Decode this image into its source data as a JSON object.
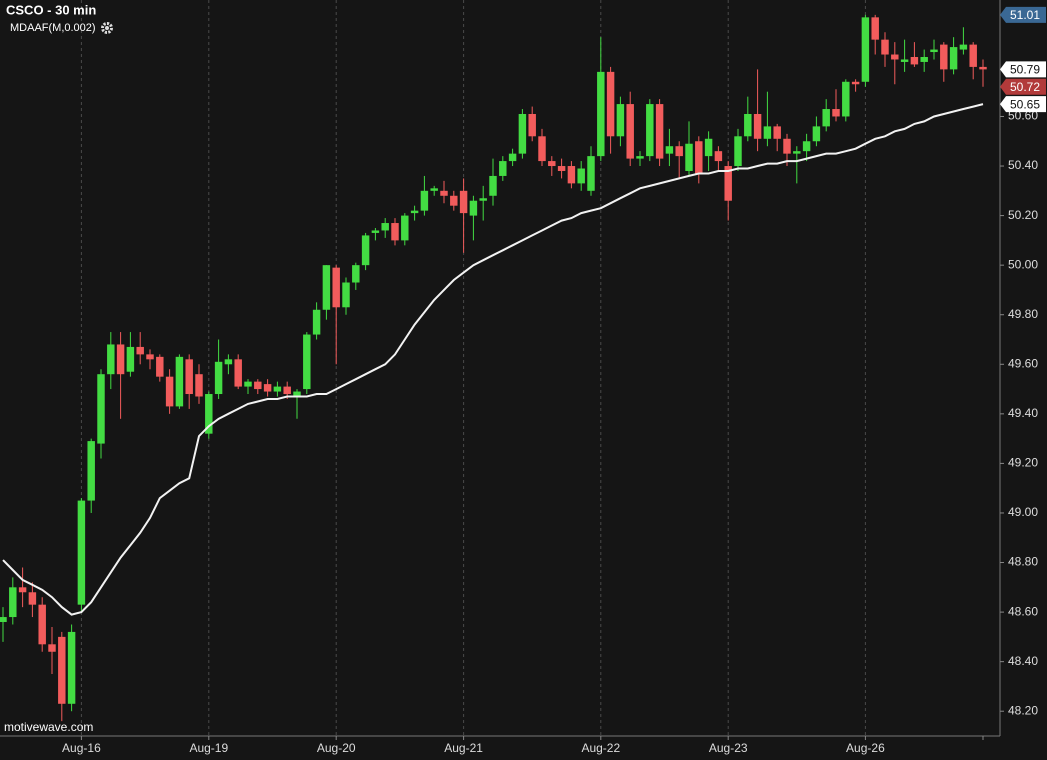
{
  "chart_data": {
    "type": "candlestick",
    "title": "CSCO - 30 min",
    "indicator": "MDAAF(M,0.002)",
    "watermark": "motivewave.com",
    "up_color": "#43dc43",
    "down_color": "#f25c5c",
    "background": "#151515",
    "xgrid": true,
    "ylim": [
      48.1,
      51.07
    ],
    "yticks": [
      {
        "value": 48.2,
        "label": "48.20"
      },
      {
        "value": 48.4,
        "label": "48.40"
      },
      {
        "value": 48.6,
        "label": "48.60"
      },
      {
        "value": 48.8,
        "label": "48.80"
      },
      {
        "value": 49.0,
        "label": "49.00"
      },
      {
        "value": 49.2,
        "label": "49.20"
      },
      {
        "value": 49.4,
        "label": "49.40"
      },
      {
        "value": 49.6,
        "label": "49.60"
      },
      {
        "value": 49.8,
        "label": "49.80"
      },
      {
        "value": 50.0,
        "label": "50.00"
      },
      {
        "value": 50.2,
        "label": "50.20"
      },
      {
        "value": 50.4,
        "label": "50.40"
      },
      {
        "value": 50.6,
        "label": "50.60"
      }
    ],
    "categories": [
      null,
      null,
      null,
      null,
      null,
      null,
      null,
      null,
      "Aug-16",
      null,
      null,
      null,
      null,
      null,
      null,
      null,
      null,
      null,
      null,
      null,
      null,
      "Aug-19",
      null,
      null,
      null,
      null,
      null,
      null,
      null,
      null,
      null,
      null,
      null,
      null,
      "Aug-20",
      null,
      null,
      null,
      null,
      null,
      null,
      null,
      null,
      null,
      null,
      null,
      null,
      "Aug-21",
      null,
      null,
      null,
      null,
      null,
      null,
      null,
      null,
      null,
      null,
      null,
      null,
      null,
      "Aug-22",
      null,
      null,
      null,
      null,
      null,
      null,
      null,
      null,
      null,
      null,
      null,
      null,
      "Aug-23",
      null,
      null,
      null,
      null,
      null,
      null,
      null,
      null,
      null,
      null,
      null,
      null,
      null,
      "Aug-26",
      null,
      null,
      null,
      null,
      null,
      null,
      null,
      null,
      null,
      null,
      null,
      null
    ],
    "open": [
      48.56,
      48.58,
      48.7,
      48.68,
      48.63,
      48.47,
      48.5,
      48.23,
      48.63,
      49.05,
      49.28,
      49.56,
      49.68,
      49.57,
      49.67,
      49.64,
      49.63,
      49.55,
      49.43,
      49.62,
      49.56,
      49.32,
      49.48,
      49.6,
      49.62,
      49.51,
      49.53,
      49.52,
      49.49,
      49.51,
      49.47,
      49.5,
      49.72,
      49.82,
      49.99,
      49.83,
      49.93,
      50.0,
      50.13,
      50.14,
      50.17,
      50.1,
      50.21,
      50.22,
      50.3,
      50.3,
      50.28,
      50.3,
      50.2,
      50.26,
      50.28,
      50.36,
      50.42,
      50.45,
      50.61,
      50.52,
      50.42,
      50.4,
      50.4,
      50.33,
      50.3,
      50.44,
      50.78,
      50.52,
      50.65,
      50.43,
      50.44,
      50.65,
      50.45,
      50.48,
      50.38,
      50.5,
      50.44,
      50.46,
      50.4,
      50.4,
      50.52,
      50.61,
      50.51,
      50.56,
      50.51,
      50.45,
      50.46,
      50.5,
      50.56,
      50.63,
      50.6,
      50.74,
      50.74,
      51.0,
      50.91,
      50.85,
      50.82,
      50.84,
      50.82,
      50.86,
      50.89,
      50.79,
      50.87,
      50.89,
      50.8
    ],
    "high": [
      48.62,
      48.74,
      48.78,
      48.72,
      48.66,
      48.54,
      48.52,
      48.55,
      49.06,
      49.3,
      49.58,
      49.73,
      49.73,
      49.73,
      49.73,
      49.66,
      49.64,
      49.58,
      49.64,
      49.64,
      49.6,
      49.49,
      49.7,
      49.64,
      49.64,
      49.54,
      49.54,
      49.54,
      49.53,
      49.53,
      49.5,
      49.73,
      49.85,
      50.0,
      50.0,
      49.95,
      50.01,
      50.13,
      50.15,
      50.19,
      50.19,
      50.21,
      50.24,
      50.36,
      50.32,
      50.34,
      50.3,
      50.35,
      50.28,
      50.32,
      50.43,
      50.44,
      50.47,
      50.63,
      50.64,
      50.55,
      50.44,
      50.43,
      50.42,
      50.42,
      50.48,
      50.92,
      50.8,
      50.68,
      50.7,
      50.46,
      50.67,
      50.67,
      50.55,
      50.5,
      50.58,
      50.52,
      50.54,
      50.48,
      50.42,
      50.55,
      50.68,
      50.79,
      50.7,
      50.57,
      50.53,
      50.48,
      50.53,
      50.6,
      50.67,
      50.71,
      50.75,
      50.75,
      51.01,
      51.01,
      50.94,
      50.9,
      50.91,
      50.9,
      50.87,
      50.91,
      50.9,
      50.92,
      50.96,
      50.9,
      50.83
    ],
    "low": [
      48.48,
      48.55,
      48.62,
      48.58,
      48.44,
      48.35,
      48.16,
      48.2,
      48.6,
      49.0,
      49.22,
      49.5,
      49.38,
      49.55,
      49.6,
      49.58,
      49.53,
      49.4,
      49.42,
      49.42,
      49.44,
      49.3,
      49.46,
      49.56,
      49.5,
      49.48,
      49.48,
      49.47,
      49.47,
      49.46,
      49.38,
      49.48,
      49.7,
      49.78,
      49.6,
      49.8,
      49.9,
      49.98,
      50.1,
      50.11,
      50.08,
      50.08,
      50.18,
      50.2,
      50.28,
      50.25,
      50.22,
      50.05,
      50.1,
      50.18,
      50.24,
      50.34,
      50.4,
      50.43,
      50.5,
      50.4,
      50.36,
      50.35,
      50.31,
      50.3,
      50.28,
      50.42,
      50.45,
      50.48,
      50.4,
      50.4,
      50.42,
      50.4,
      50.4,
      50.35,
      50.36,
      50.33,
      50.38,
      50.38,
      50.18,
      50.38,
      50.5,
      50.46,
      50.48,
      50.46,
      50.4,
      50.33,
      50.42,
      50.48,
      50.54,
      50.58,
      50.58,
      50.7,
      50.72,
      50.85,
      50.8,
      50.73,
      50.78,
      50.8,
      50.78,
      50.83,
      50.74,
      50.77,
      50.85,
      50.75,
      50.72
    ],
    "close": [
      48.58,
      48.7,
      48.68,
      48.63,
      48.47,
      48.44,
      48.23,
      48.52,
      49.05,
      49.29,
      49.56,
      49.68,
      49.56,
      49.67,
      49.64,
      49.62,
      49.55,
      49.43,
      49.63,
      49.48,
      49.47,
      49.48,
      49.61,
      49.62,
      49.51,
      49.53,
      49.5,
      49.49,
      49.51,
      49.48,
      49.49,
      49.72,
      49.82,
      50.0,
      49.83,
      49.93,
      50.0,
      50.12,
      50.14,
      50.17,
      50.1,
      50.2,
      50.22,
      50.3,
      50.31,
      50.28,
      50.24,
      50.21,
      50.26,
      50.27,
      50.36,
      50.42,
      50.45,
      50.61,
      50.52,
      50.42,
      50.4,
      50.38,
      50.33,
      50.39,
      50.44,
      50.78,
      50.52,
      50.65,
      50.43,
      50.44,
      50.65,
      50.43,
      50.48,
      50.44,
      50.49,
      50.37,
      50.51,
      50.42,
      50.26,
      50.52,
      50.61,
      50.51,
      50.56,
      50.51,
      50.45,
      50.46,
      50.5,
      50.56,
      50.63,
      50.6,
      50.74,
      50.73,
      51.0,
      50.91,
      50.85,
      50.83,
      50.83,
      50.81,
      50.84,
      50.87,
      50.79,
      50.88,
      50.89,
      50.8,
      50.79
    ],
    "series": [
      {
        "name": "MDAAF(M,0.002)",
        "color": "#f2f2f2",
        "values": [
          48.81,
          48.77,
          48.73,
          48.71,
          48.69,
          48.66,
          48.62,
          48.59,
          48.6,
          48.64,
          48.7,
          48.76,
          48.82,
          48.87,
          48.92,
          48.98,
          49.06,
          49.09,
          49.12,
          49.14,
          49.31,
          49.35,
          49.38,
          49.4,
          49.42,
          49.44,
          49.45,
          49.46,
          49.46,
          49.47,
          49.47,
          49.47,
          49.48,
          49.48,
          49.5,
          49.52,
          49.54,
          49.56,
          49.58,
          49.6,
          49.64,
          49.7,
          49.76,
          49.81,
          49.86,
          49.9,
          49.94,
          49.97,
          50.0,
          50.02,
          50.04,
          50.06,
          50.08,
          50.1,
          50.12,
          50.14,
          50.16,
          50.18,
          50.19,
          50.21,
          50.22,
          50.23,
          50.25,
          50.27,
          50.29,
          50.31,
          50.32,
          50.33,
          50.34,
          50.35,
          50.36,
          50.37,
          50.37,
          50.38,
          50.38,
          50.39,
          50.39,
          50.4,
          50.41,
          50.41,
          50.42,
          50.42,
          50.43,
          50.44,
          50.45,
          50.45,
          50.46,
          50.47,
          50.49,
          50.51,
          50.52,
          50.54,
          50.55,
          50.57,
          50.58,
          50.6,
          50.61,
          50.62,
          50.63,
          50.64,
          50.65
        ]
      }
    ],
    "price_tags": [
      {
        "value": 51.01,
        "color": "#3a6894",
        "text_color": "#ffffff"
      },
      {
        "value": 50.79,
        "color": "#ffffff",
        "text_color": "#111111"
      },
      {
        "value": 50.72,
        "color": "#b23a3a",
        "text_color": "#ffffff"
      },
      {
        "value": 50.65,
        "color": "#ffffff",
        "text_color": "#111111"
      }
    ]
  }
}
